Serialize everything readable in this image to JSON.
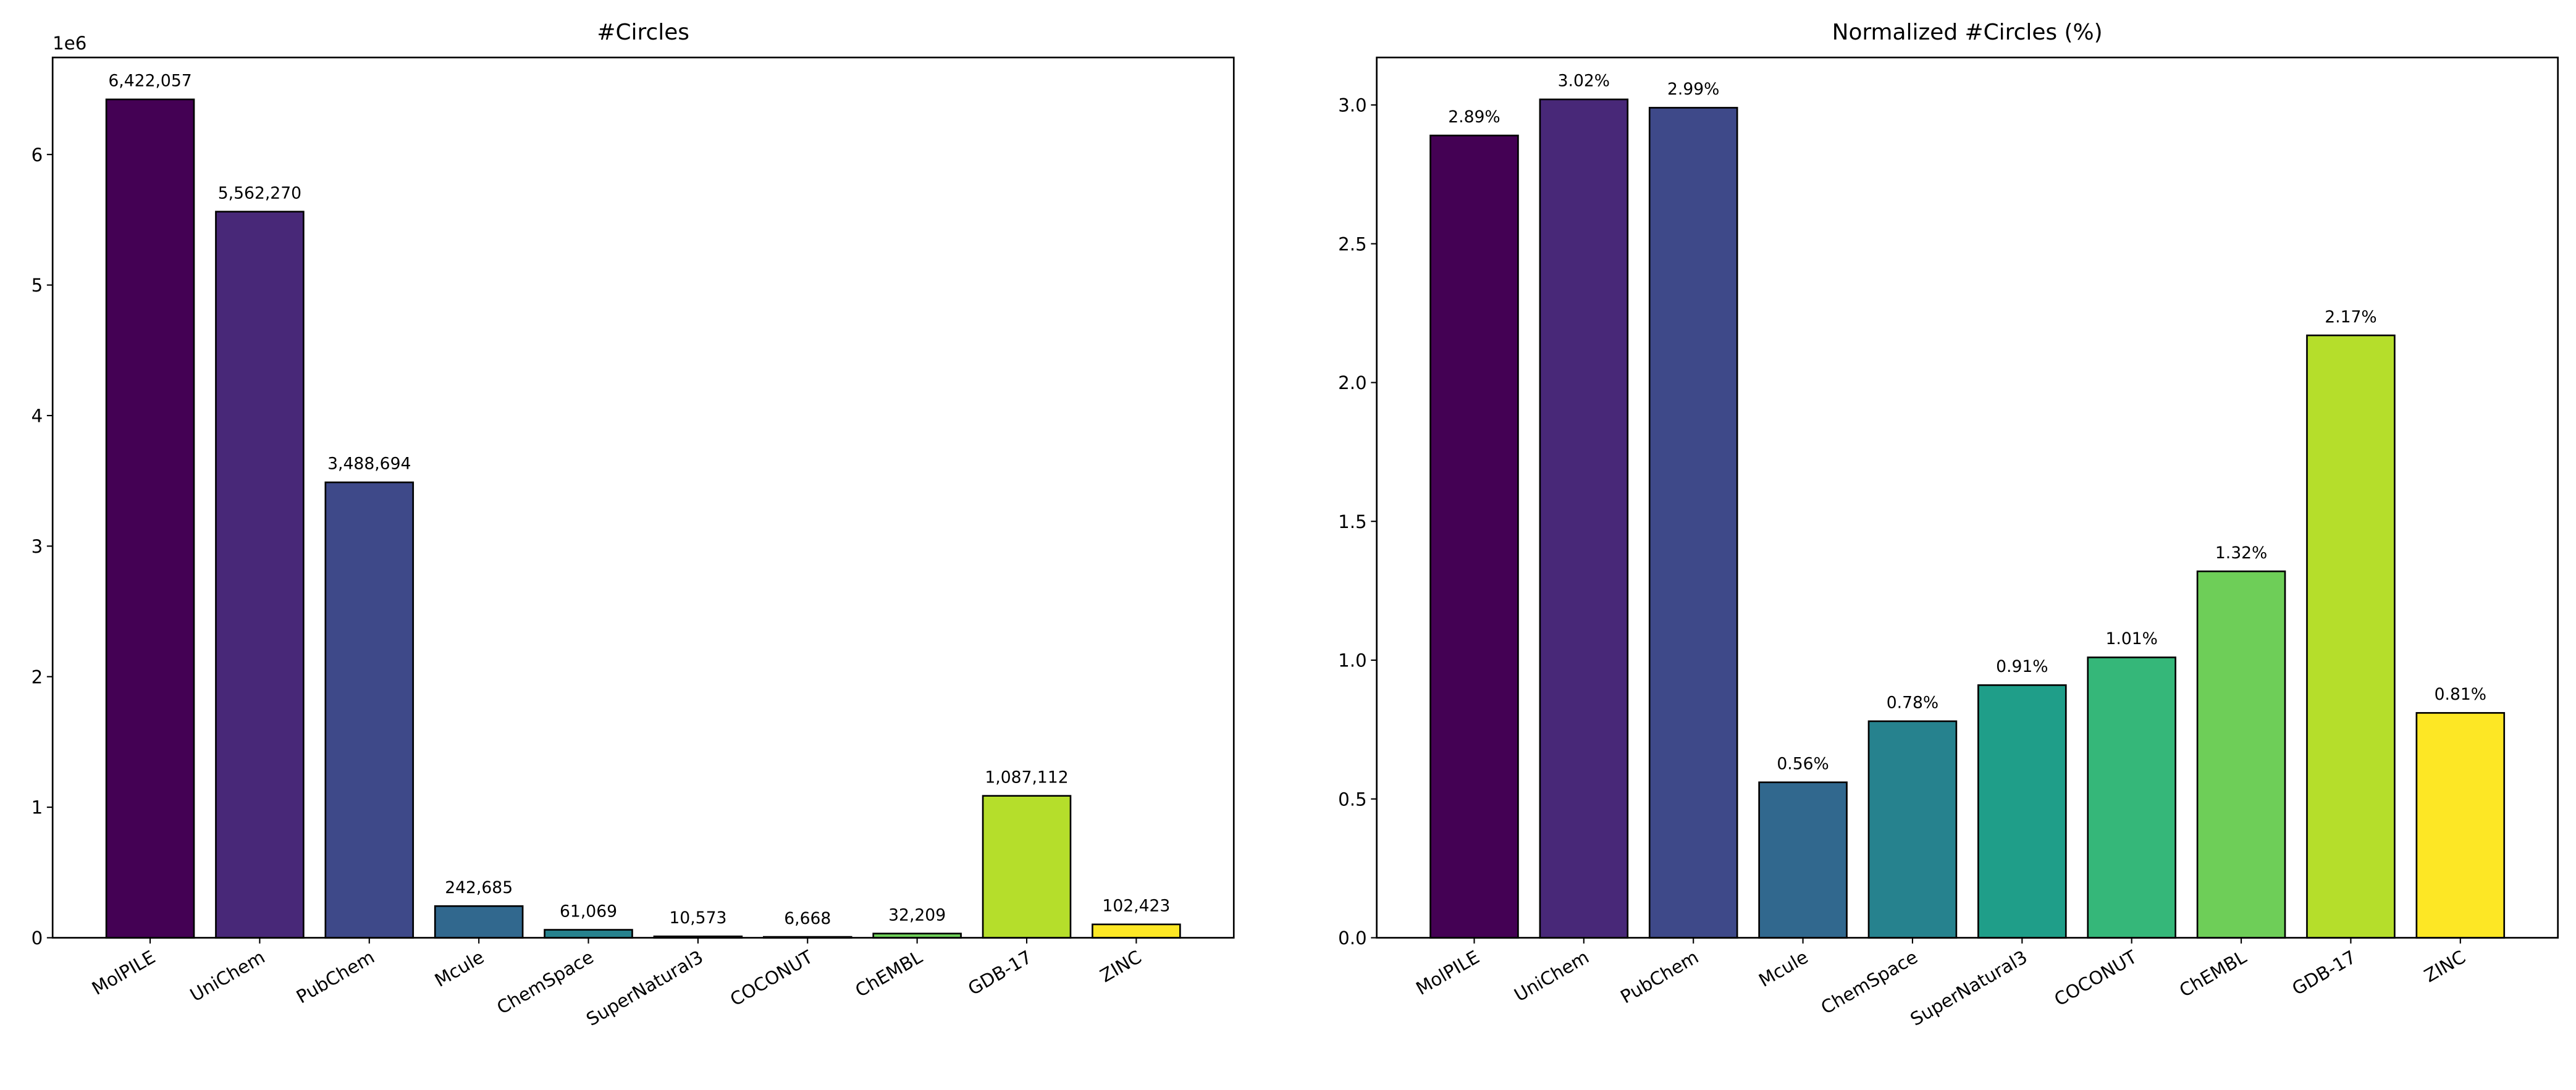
{
  "chart_data": [
    {
      "type": "bar",
      "title": "#Circles",
      "y_offset_label": "1e6",
      "categories": [
        "MolPILE",
        "UniChem",
        "PubChem",
        "Mcule",
        "ChemSpace",
        "SuperNatural3",
        "COCONUT",
        "ChEMBL",
        "GDB-17",
        "ZINC"
      ],
      "values": [
        6422057,
        5562270,
        3488694,
        242685,
        61069,
        10573,
        6668,
        32209,
        1087112,
        102423
      ],
      "value_labels": [
        "6,422,057",
        "5,562,270",
        "3,488,694",
        "242,685",
        "61,069",
        "10,573",
        "6,668",
        "32,209",
        "1,087,112",
        "102,423"
      ],
      "colors": [
        "#440154",
        "#482878",
        "#3e4989",
        "#31688e",
        "#26828e",
        "#1f9e89",
        "#35b779",
        "#6ece58",
        "#b5de2b",
        "#fde725"
      ],
      "ylim": [
        0,
        6743160
      ],
      "yticks": [
        0,
        {
          "value": 1000000,
          "label": "1"
        },
        {
          "value": 2000000,
          "label": "2"
        },
        {
          "value": 3000000,
          "label": "3"
        },
        {
          "value": 4000000,
          "label": "4"
        },
        {
          "value": 5000000,
          "label": "5"
        },
        {
          "value": 6000000,
          "label": "6"
        }
      ]
    },
    {
      "type": "bar",
      "title": "Normalized #Circles (%)",
      "categories": [
        "MolPILE",
        "UniChem",
        "PubChem",
        "Mcule",
        "ChemSpace",
        "SuperNatural3",
        "COCONUT",
        "ChEMBL",
        "GDB-17",
        "ZINC"
      ],
      "values": [
        2.89,
        3.02,
        2.99,
        0.56,
        0.78,
        0.91,
        1.01,
        1.32,
        2.17,
        0.81
      ],
      "value_labels": [
        "2.89%",
        "3.02%",
        "2.99%",
        "0.56%",
        "0.78%",
        "0.91%",
        "1.01%",
        "1.32%",
        "2.17%",
        "0.81%"
      ],
      "colors": [
        "#440154",
        "#482878",
        "#3e4989",
        "#31688e",
        "#26828e",
        "#1f9e89",
        "#35b779",
        "#6ece58",
        "#b5de2b",
        "#fde725"
      ],
      "ylim": [
        0,
        3.171
      ],
      "yticks": [
        {
          "value": 0,
          "label": "0.0"
        },
        0.5,
        {
          "value": 1,
          "label": "1.0"
        },
        1.5,
        {
          "value": 2,
          "label": "2.0"
        },
        2.5,
        {
          "value": 3,
          "label": "3.0"
        }
      ]
    }
  ]
}
